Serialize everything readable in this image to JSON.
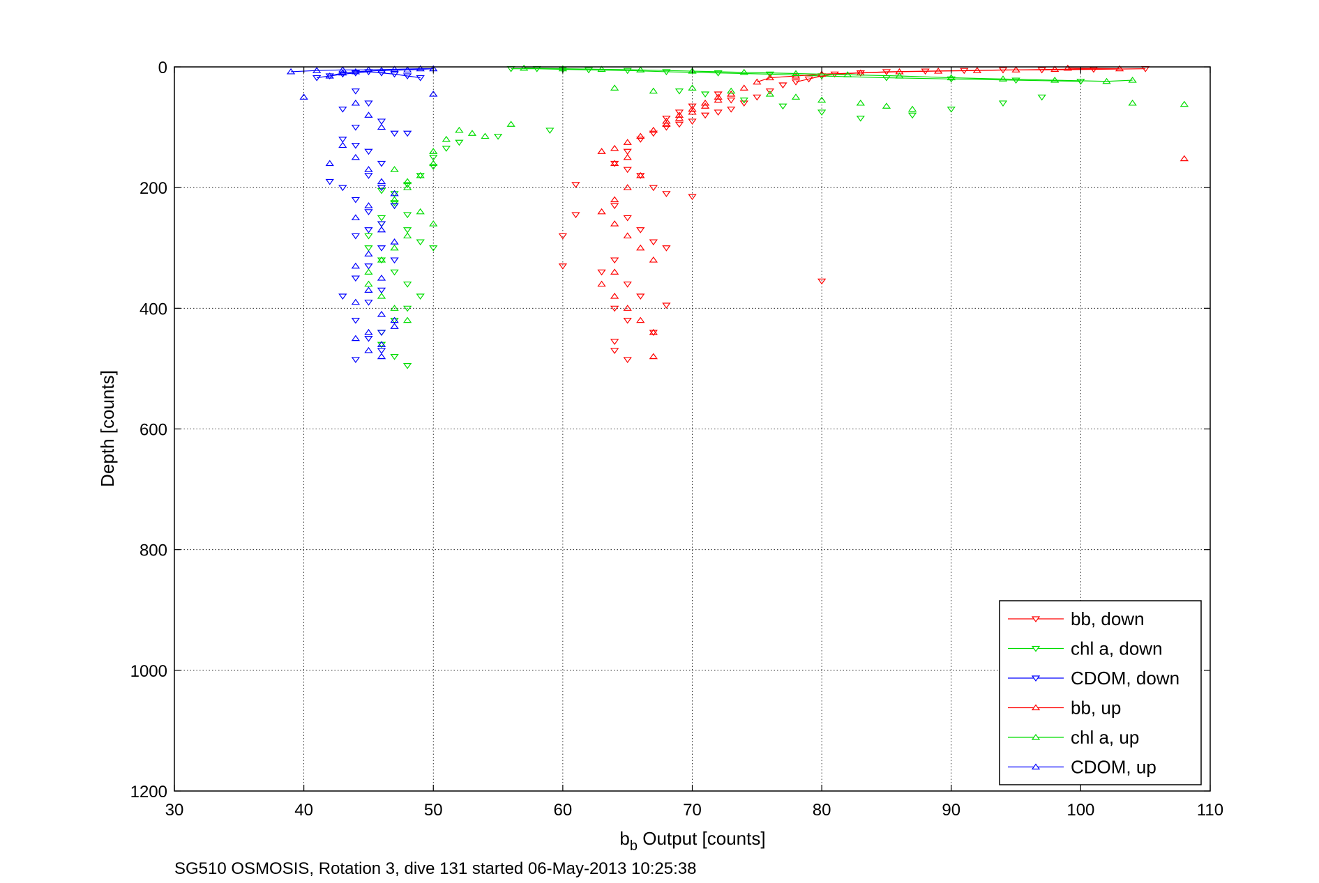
{
  "chart_data": {
    "type": "scatter",
    "xlabel_main": "b",
    "xlabel_sub": "b",
    "xlabel_rest": " Output [counts]",
    "ylabel": "Depth [counts]",
    "footer": "SG510 OSMOSIS, Rotation 3, dive 131 started 06-May-2013 10:25:38",
    "xlim": [
      30,
      110
    ],
    "ylim": [
      0,
      1200
    ],
    "y_reversed": true,
    "grid": true,
    "legend_position": "bottom-right",
    "xticks": [
      "30",
      "40",
      "50",
      "60",
      "70",
      "80",
      "90",
      "100",
      "110"
    ],
    "yticks": [
      "0",
      "200",
      "400",
      "600",
      "800",
      "1000",
      "1200"
    ],
    "colors": {
      "bb": "#ff0000",
      "chl": "#00dd00",
      "cdom": "#0000ff"
    },
    "legend": [
      {
        "label": "bb, down",
        "color": "#ff0000",
        "marker": "triangle-down"
      },
      {
        "label": "chl a, down",
        "color": "#00dd00",
        "marker": "triangle-down"
      },
      {
        "label": "CDOM, down",
        "color": "#0000ff",
        "marker": "triangle-down"
      },
      {
        "label": "bb, up",
        "color": "#ff0000",
        "marker": "triangle-up"
      },
      {
        "label": "chl a, up",
        "color": "#00dd00",
        "marker": "triangle-up"
      },
      {
        "label": "CDOM, up",
        "color": "#0000ff",
        "marker": "triangle-up"
      }
    ],
    "series": [
      {
        "label": "bb, down",
        "color": "#ff0000",
        "marker": "triangle-down",
        "x": [
          105,
          101,
          97,
          94,
          91,
          88,
          85,
          83,
          81,
          80,
          79,
          78,
          77,
          76,
          75,
          74,
          73,
          72,
          71,
          70,
          69,
          68,
          67,
          66,
          65,
          64,
          65,
          66,
          67,
          68,
          70,
          61,
          61,
          60,
          60,
          64,
          65,
          66,
          67,
          68,
          64,
          63,
          65,
          66,
          64,
          68,
          65,
          67,
          80,
          73,
          72,
          70,
          69,
          68,
          64,
          64,
          65
        ],
        "y": [
          3,
          4,
          5,
          5,
          6,
          7,
          8,
          10,
          12,
          15,
          20,
          25,
          30,
          40,
          50,
          60,
          70,
          75,
          80,
          90,
          95,
          100,
          110,
          120,
          140,
          160,
          170,
          180,
          200,
          210,
          215,
          195,
          245,
          280,
          330,
          230,
          250,
          270,
          290,
          300,
          320,
          340,
          360,
          380,
          400,
          395,
          420,
          440,
          355,
          55,
          45,
          65,
          75,
          85,
          455,
          470,
          485
        ]
      },
      {
        "label": "chl a, down",
        "color": "#00dd00",
        "marker": "triangle-down",
        "x": [
          56,
          58,
          60,
          62,
          65,
          68,
          72,
          76,
          80,
          85,
          90,
          95,
          100,
          97,
          94,
          90,
          87,
          83,
          80,
          77,
          74,
          71,
          69,
          59,
          55,
          52,
          51,
          50,
          50,
          49,
          48,
          47,
          47,
          46,
          48,
          49,
          50,
          48,
          47,
          46,
          46,
          45,
          45,
          46,
          47,
          48,
          49,
          48,
          47,
          46,
          46,
          47,
          48
        ],
        "y": [
          3,
          3,
          4,
          5,
          6,
          8,
          10,
          12,
          15,
          18,
          20,
          22,
          24,
          50,
          60,
          70,
          80,
          85,
          75,
          65,
          55,
          45,
          40,
          105,
          115,
          125,
          135,
          150,
          165,
          180,
          195,
          210,
          230,
          250,
          270,
          290,
          300,
          245,
          225,
          205,
          260,
          280,
          300,
          320,
          340,
          360,
          380,
          400,
          420,
          440,
          460,
          480,
          495
        ]
      },
      {
        "label": "CDOM, down",
        "color": "#0000ff",
        "marker": "triangle-down",
        "x": [
          41,
          42,
          43,
          44,
          45,
          46,
          47,
          48,
          49,
          44,
          43,
          45,
          46,
          44,
          43,
          45,
          46,
          47,
          44,
          42,
          43,
          45,
          46,
          44,
          45,
          47,
          46,
          44,
          45,
          46,
          47,
          45,
          44,
          46,
          45,
          43,
          44,
          46,
          48,
          45,
          46,
          44
        ],
        "y": [
          18,
          15,
          12,
          10,
          8,
          10,
          12,
          15,
          18,
          40,
          70,
          60,
          90,
          100,
          120,
          140,
          160,
          110,
          130,
          190,
          200,
          180,
          200,
          220,
          240,
          230,
          260,
          280,
          270,
          300,
          320,
          330,
          350,
          370,
          390,
          380,
          420,
          440,
          110,
          450,
          470,
          485
        ]
      },
      {
        "label": "bb, up",
        "color": "#ff0000",
        "marker": "triangle-up",
        "x": [
          99,
          103,
          98,
          95,
          92,
          89,
          86,
          83,
          80,
          78,
          76,
          75,
          74,
          73,
          72,
          71,
          70,
          69,
          68,
          67,
          66,
          65,
          64,
          63,
          64,
          65,
          66,
          65,
          64,
          63,
          64,
          65,
          66,
          67,
          64,
          63,
          64,
          65,
          66,
          67,
          108,
          72,
          71,
          70,
          69,
          68,
          67
        ],
        "y": [
          2,
          3,
          4,
          5,
          6,
          7,
          8,
          10,
          12,
          15,
          18,
          25,
          35,
          45,
          55,
          65,
          75,
          85,
          95,
          105,
          115,
          125,
          135,
          140,
          160,
          150,
          180,
          200,
          220,
          240,
          260,
          280,
          300,
          320,
          340,
          360,
          380,
          400,
          420,
          440,
          152,
          50,
          60,
          70,
          80,
          90,
          480
        ]
      },
      {
        "label": "chl a, up",
        "color": "#00dd00",
        "marker": "triangle-up",
        "x": [
          57,
          60,
          63,
          66,
          70,
          74,
          78,
          82,
          86,
          90,
          94,
          98,
          102,
          104,
          108,
          104,
          87,
          85,
          83,
          80,
          78,
          76,
          73,
          70,
          67,
          64,
          56,
          54,
          53,
          52,
          51,
          50,
          50,
          49,
          48,
          47,
          47,
          48,
          49,
          50,
          48,
          47,
          46,
          45,
          45,
          46,
          47,
          48
        ],
        "y": [
          2,
          3,
          4,
          5,
          7,
          9,
          11,
          13,
          15,
          18,
          20,
          22,
          24,
          22,
          62,
          60,
          70,
          65,
          60,
          55,
          50,
          45,
          40,
          35,
          40,
          35,
          95,
          115,
          110,
          105,
          120,
          140,
          160,
          180,
          200,
          220,
          170,
          190,
          240,
          260,
          280,
          300,
          320,
          340,
          360,
          380,
          400,
          420
        ]
      },
      {
        "label": "CDOM, up",
        "color": "#0000ff",
        "marker": "triangle-up",
        "x": [
          39,
          41,
          43,
          45,
          47,
          49,
          50,
          48,
          46,
          44,
          43,
          42,
          40,
          50,
          44,
          45,
          46,
          43,
          42,
          44,
          45,
          46,
          47,
          45,
          44,
          46,
          47,
          45,
          44,
          46,
          45,
          44,
          46,
          47,
          45,
          44,
          46,
          45,
          46,
          47
        ],
        "y": [
          8,
          6,
          5,
          5,
          4,
          3,
          3,
          5,
          6,
          8,
          10,
          15,
          50,
          45,
          60,
          80,
          100,
          130,
          160,
          150,
          170,
          190,
          210,
          230,
          250,
          270,
          290,
          310,
          330,
          350,
          370,
          390,
          410,
          430,
          440,
          450,
          460,
          470,
          480,
          420
        ]
      }
    ]
  }
}
